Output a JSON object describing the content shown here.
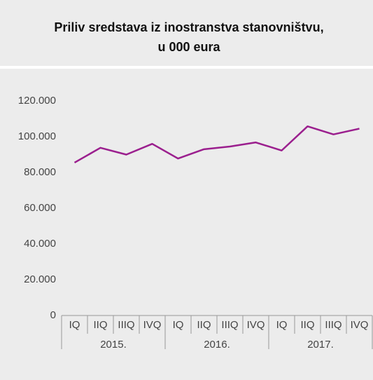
{
  "chart_data": {
    "type": "line",
    "title": [
      "Priliv sredstava iz inostranstva stanovništvu,",
      "u 000 eura"
    ],
    "categories": [
      "IQ",
      "IIQ",
      "IIIQ",
      "IVQ",
      "IQ",
      "IIQ",
      "IIIQ",
      "IVQ",
      "IQ",
      "IIQ",
      "IIIQ",
      "IVQ"
    ],
    "group_labels": [
      "2015.",
      "2016.",
      "2017."
    ],
    "series": [
      {
        "color": "#9b1f8e",
        "values": [
          85500,
          93800,
          90000,
          96000,
          87800,
          93000,
          94500,
          96800,
          92300,
          105800,
          101300,
          104500
        ]
      }
    ],
    "ylim": [
      0,
      120000
    ],
    "yticks": [
      0,
      {
        "value": 20000,
        "label": "20.000"
      },
      {
        "value": 40000,
        "label": "40.000"
      },
      {
        "value": 60000,
        "label": "60.000"
      },
      {
        "value": 80000,
        "label": "80.000"
      },
      {
        "value": 100000,
        "label": "100.000"
      },
      {
        "value": 120000,
        "label": "120.000"
      }
    ],
    "grid": false
  }
}
